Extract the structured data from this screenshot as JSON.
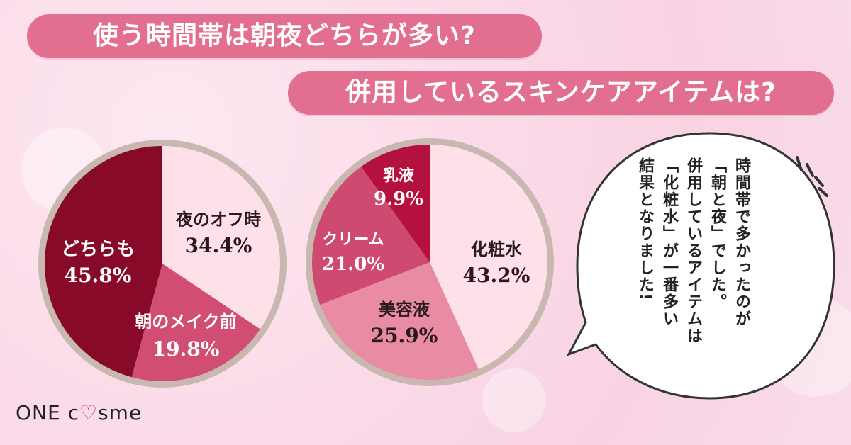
{
  "banners": {
    "title1": "使う時間帯は朝夜どちらが多い?",
    "title2": "併用しているスキンケアアイテムは?"
  },
  "chart_data": [
    {
      "type": "pie",
      "slices": [
        {
          "label": "夜のオフ時",
          "value": 34.4,
          "display": "34.4%",
          "color": "#fde0e8"
        },
        {
          "label": "朝のメイク前",
          "value": 19.8,
          "display": "19.8%",
          "color": "#d24d72"
        },
        {
          "label": "どちらも",
          "value": 45.8,
          "display": "45.8%",
          "color": "#870a29"
        }
      ]
    },
    {
      "type": "pie",
      "slices": [
        {
          "label": "化粧水",
          "value": 43.2,
          "display": "43.2%",
          "color": "#fde0e8"
        },
        {
          "label": "美容液",
          "value": 25.9,
          "display": "25.9%",
          "color": "#e88ba3"
        },
        {
          "label": "クリーム",
          "value": 21.0,
          "display": "21.0%",
          "color": "#cf4a71"
        },
        {
          "label": "乳液",
          "value": 9.9,
          "display": "9.9%",
          "color": "#b5113e"
        }
      ]
    }
  ],
  "bubble": {
    "lines": [
      "時間帯で多かったのが",
      "「朝と夜」でした。",
      "併用しているアイテムは",
      "「化粧水」が一番多い",
      "結果となりました!"
    ]
  },
  "logo": {
    "part1": "ONE c",
    "heart": "♡",
    "part2": "sme"
  }
}
